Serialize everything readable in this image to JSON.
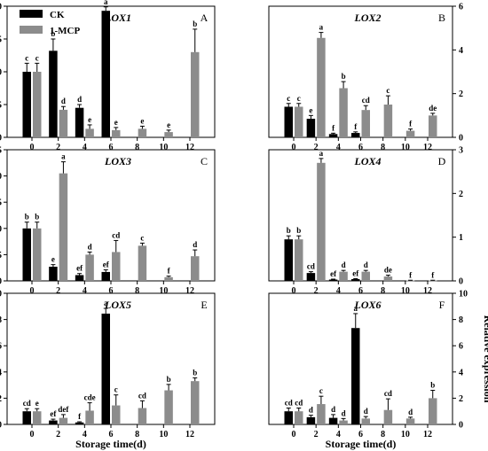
{
  "legend": {
    "entries": [
      {
        "name": "CK",
        "color": "#000000"
      },
      {
        "name": "1-MCP",
        "color": "#8c8c8c"
      }
    ]
  },
  "chart_data": [
    {
      "type": "bar",
      "panel": "A",
      "title": "LOX1",
      "ylabel": "Relative expression",
      "xlabel": "",
      "categories": [
        "0",
        "2",
        "4",
        "6",
        "8",
        "10",
        "12"
      ],
      "ylim": [
        0,
        2.0
      ],
      "yticks": [
        0,
        0.5,
        1.0,
        1.5,
        2.0
      ],
      "ytick_labels": [
        "0",
        "0.5",
        "1.0",
        "1.5",
        "2.0"
      ],
      "yaxis_side": "left",
      "series": [
        {
          "name": "CK",
          "values": [
            1.0,
            1.32,
            0.45,
            1.93,
            null,
            null,
            null
          ],
          "errors": [
            0.13,
            0.18,
            0.05,
            0.06,
            null,
            null,
            null
          ],
          "sig": [
            "c",
            "b",
            "d",
            "a",
            "",
            "",
            ""
          ]
        },
        {
          "name": "1-MCP",
          "values": [
            1.0,
            0.42,
            0.13,
            0.11,
            0.13,
            0.08,
            1.3
          ],
          "errors": [
            0.13,
            0.05,
            0.06,
            0.04,
            0.04,
            0.03,
            0.35
          ],
          "sig": [
            "c",
            "d",
            "e",
            "e",
            "e",
            "e",
            "b"
          ]
        }
      ]
    },
    {
      "type": "bar",
      "panel": "B",
      "title": "LOX2",
      "ylabel": "",
      "xlabel": "",
      "categories": [
        "0",
        "2",
        "4",
        "6",
        "8",
        "10",
        "12"
      ],
      "ylim": [
        0,
        6
      ],
      "yticks": [
        0,
        2,
        4,
        6
      ],
      "ytick_labels": [
        "0",
        "2",
        "4",
        "6"
      ],
      "yaxis_side": "right",
      "series": [
        {
          "name": "CK",
          "values": [
            1.4,
            0.85,
            0.15,
            0.2,
            null,
            null,
            null
          ],
          "errors": [
            0.15,
            0.15,
            0.04,
            0.05,
            null,
            null,
            null
          ],
          "sig": [
            "c",
            "e",
            "f",
            "f",
            "",
            "",
            ""
          ]
        },
        {
          "name": "1-MCP",
          "values": [
            1.4,
            4.55,
            2.25,
            1.25,
            1.5,
            0.3,
            1.0
          ],
          "errors": [
            0.15,
            0.25,
            0.3,
            0.2,
            0.4,
            0.08,
            0.1
          ],
          "sig": [
            "c",
            "a",
            "b",
            "cd",
            "c",
            "f",
            "de"
          ]
        }
      ]
    },
    {
      "type": "bar",
      "panel": "C",
      "title": "LOX3",
      "ylabel": "Relative expression",
      "xlabel": "",
      "categories": [
        "0",
        "2",
        "4",
        "6",
        "8",
        "10",
        "12"
      ],
      "ylim": [
        0,
        2.5
      ],
      "yticks": [
        0,
        0.5,
        1.0,
        1.5,
        2.0,
        2.5
      ],
      "ytick_labels": [
        "0",
        "0.5",
        "1.0",
        "1.5",
        "2.0",
        "2.5"
      ],
      "yaxis_side": "left",
      "series": [
        {
          "name": "CK",
          "values": [
            1.0,
            0.27,
            0.11,
            0.17,
            null,
            null,
            null
          ],
          "errors": [
            0.12,
            0.04,
            0.03,
            0.04,
            null,
            null,
            null
          ],
          "sig": [
            "b",
            "e",
            "ef",
            "ef",
            "",
            "",
            ""
          ]
        },
        {
          "name": "1-MCP",
          "values": [
            1.0,
            2.05,
            0.5,
            0.55,
            0.67,
            0.07,
            0.47
          ],
          "errors": [
            0.12,
            0.22,
            0.05,
            0.22,
            0.05,
            0.02,
            0.12
          ],
          "sig": [
            "b",
            "a",
            "d",
            "cd",
            "c",
            "f",
            "d"
          ]
        }
      ]
    },
    {
      "type": "bar",
      "panel": "D",
      "title": "LOX4",
      "ylabel": "",
      "xlabel": "",
      "categories": [
        "0",
        "2",
        "4",
        "6",
        "8",
        "10",
        "12"
      ],
      "ylim": [
        0,
        3
      ],
      "yticks": [
        0,
        1,
        2,
        3
      ],
      "ytick_labels": [
        "0",
        "1",
        "2",
        "3"
      ],
      "yaxis_side": "right",
      "series": [
        {
          "name": "CK",
          "values": [
            0.95,
            0.18,
            0.03,
            0.04,
            null,
            null,
            null
          ],
          "errors": [
            0.08,
            0.03,
            0.01,
            0.01,
            null,
            null,
            null
          ],
          "sig": [
            "b",
            "cd",
            "ef",
            "ef",
            "",
            "",
            ""
          ]
        },
        {
          "name": "1-MCP",
          "values": [
            0.95,
            2.7,
            0.21,
            0.21,
            0.1,
            0.01,
            0.01
          ],
          "errors": [
            0.08,
            0.1,
            0.03,
            0.03,
            0.03,
            0.005,
            0.005
          ],
          "sig": [
            "b",
            "a",
            "d",
            "d",
            "de",
            "f",
            "f"
          ]
        }
      ]
    },
    {
      "type": "bar",
      "panel": "E",
      "title": "LOX5",
      "ylabel": "Relative expression",
      "xlabel": "Storage time(d)",
      "categories": [
        "0",
        "2",
        "4",
        "6",
        "8",
        "10",
        "12"
      ],
      "ylim": [
        0,
        10
      ],
      "yticks": [
        0,
        2,
        4,
        6,
        8,
        10
      ],
      "ytick_labels": [
        "0",
        "2",
        "4",
        "6",
        "8",
        "10"
      ],
      "yaxis_side": "left",
      "series": [
        {
          "name": "CK",
          "values": [
            1.0,
            0.3,
            0.15,
            8.45,
            null,
            null,
            null
          ],
          "errors": [
            0.2,
            0.1,
            0.05,
            0.4,
            null,
            null,
            null
          ],
          "sig": [
            "cd",
            "ef",
            "f",
            "a",
            "",
            "",
            ""
          ]
        },
        {
          "name": "1-MCP",
          "values": [
            1.0,
            0.5,
            1.05,
            1.45,
            1.25,
            2.6,
            3.3
          ],
          "errors": [
            0.2,
            0.25,
            0.6,
            0.8,
            0.55,
            0.45,
            0.25
          ],
          "sig": [
            "e",
            "def",
            "cde",
            "c",
            "cd",
            "b",
            "b"
          ]
        }
      ]
    },
    {
      "type": "bar",
      "panel": "F",
      "title": "LOX6",
      "ylabel": "Relative expression",
      "xlabel": "Storage time(d)",
      "categories": [
        "0",
        "2",
        "4",
        "6",
        "8",
        "10",
        "12"
      ],
      "ylim": [
        0,
        10
      ],
      "yticks": [
        0,
        2,
        4,
        6,
        8,
        10
      ],
      "ytick_labels": [
        "0",
        "2",
        "4",
        "6",
        "8",
        "10"
      ],
      "yaxis_side": "right",
      "series": [
        {
          "name": "CK",
          "values": [
            1.0,
            0.55,
            0.5,
            7.35,
            null,
            null,
            null
          ],
          "errors": [
            0.25,
            0.15,
            0.25,
            1.1,
            null,
            null,
            null
          ],
          "sig": [
            "cd",
            "d",
            "d",
            "a",
            "",
            "",
            ""
          ]
        },
        {
          "name": "1-MCP",
          "values": [
            1.0,
            1.55,
            0.3,
            0.45,
            1.1,
            0.45,
            2.0
          ],
          "errors": [
            0.25,
            0.6,
            0.15,
            0.15,
            0.85,
            0.1,
            0.6
          ],
          "sig": [
            "cd",
            "c",
            "d",
            "d",
            "cd",
            "d",
            "b"
          ]
        }
      ]
    }
  ]
}
